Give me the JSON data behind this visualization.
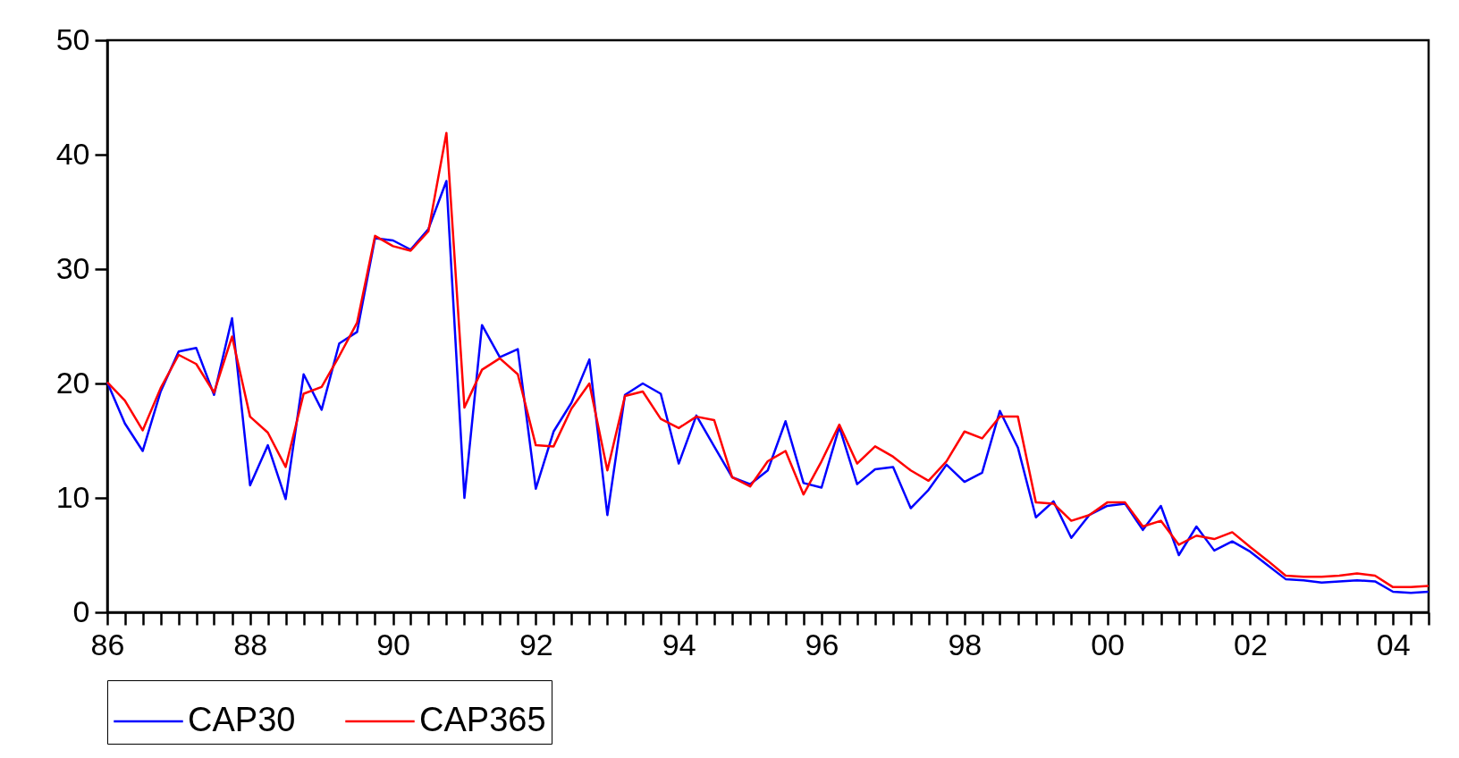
{
  "chart_data": {
    "type": "line",
    "x": [
      "1986-01",
      "1986-04",
      "1986-07",
      "1986-10",
      "1987-01",
      "1987-04",
      "1987-07",
      "1987-10",
      "1988-01",
      "1988-04",
      "1988-07",
      "1988-10",
      "1989-01",
      "1989-04",
      "1989-07",
      "1989-10",
      "1990-01",
      "1990-04",
      "1990-07",
      "1990-10",
      "1991-01",
      "1991-04",
      "1991-07",
      "1991-10",
      "1992-01",
      "1992-04",
      "1992-07",
      "1992-10",
      "1993-01",
      "1993-04",
      "1993-07",
      "1993-10",
      "1994-01",
      "1994-04",
      "1994-07",
      "1994-10",
      "1995-01",
      "1995-04",
      "1995-07",
      "1995-10",
      "1996-01",
      "1996-04",
      "1996-07",
      "1996-10",
      "1997-01",
      "1997-04",
      "1997-07",
      "1997-10",
      "1998-01",
      "1998-04",
      "1998-07",
      "1998-10",
      "1999-01",
      "1999-04",
      "1999-07",
      "1999-10",
      "2000-01",
      "2000-04",
      "2000-07",
      "2000-10",
      "2001-01",
      "2001-04",
      "2001-07",
      "2001-10",
      "2002-01",
      "2002-04",
      "2002-07",
      "2002-10",
      "2003-01",
      "2003-04",
      "2003-07",
      "2003-10",
      "2004-01",
      "2004-04",
      "2004-07"
    ],
    "series": [
      {
        "name": "CAP30",
        "color": "#0000ff",
        "values": [
          20.1,
          16.5,
          14.1,
          19.3,
          22.8,
          23.1,
          19.0,
          25.7,
          11.1,
          14.6,
          9.9,
          20.8,
          17.7,
          23.5,
          24.5,
          32.7,
          32.5,
          31.7,
          33.5,
          37.7,
          10.0,
          25.1,
          22.3,
          23.0,
          10.8,
          15.8,
          18.3,
          22.1,
          8.5,
          19.0,
          20.0,
          19.1,
          13.0,
          17.2,
          14.5,
          11.8,
          11.2,
          12.4,
          16.7,
          11.3,
          10.9,
          16.2,
          11.2,
          12.5,
          12.7,
          9.1,
          10.7,
          12.9,
          11.4,
          12.2,
          17.6,
          14.4,
          8.3,
          9.7,
          6.5,
          8.5,
          9.3,
          9.5,
          7.2,
          9.3,
          5.0,
          7.5,
          5.4,
          6.2,
          5.3,
          4.1,
          2.9,
          2.8,
          2.6,
          2.7,
          2.8,
          2.7,
          1.8,
          1.7,
          1.8
        ]
      },
      {
        "name": "CAP365",
        "color": "#ff0000",
        "values": [
          20.1,
          18.5,
          15.9,
          19.6,
          22.5,
          21.7,
          19.2,
          24.1,
          17.1,
          15.7,
          12.7,
          19.1,
          19.7,
          22.4,
          25.3,
          32.9,
          32.0,
          31.6,
          33.3,
          41.9,
          17.9,
          21.2,
          22.2,
          20.8,
          14.6,
          14.5,
          17.8,
          20.0,
          12.4,
          18.9,
          19.3,
          16.9,
          16.1,
          17.1,
          16.8,
          11.8,
          11.0,
          13.2,
          14.1,
          10.3,
          13.2,
          16.4,
          13.0,
          14.5,
          13.6,
          12.4,
          11.5,
          13.2,
          15.8,
          15.2,
          17.1,
          17.1,
          9.6,
          9.5,
          8.0,
          8.5,
          9.6,
          9.6,
          7.5,
          8.0,
          5.9,
          6.7,
          6.4,
          7.0,
          5.7,
          4.5,
          3.2,
          3.1,
          3.1,
          3.2,
          3.4,
          3.2,
          2.2,
          2.2,
          2.3
        ]
      }
    ],
    "xlim": [
      "1986-01",
      "2004-07"
    ],
    "xticks": [
      {
        "value": "1986-01",
        "label": "86"
      },
      {
        "value": "1986-04",
        "label": null
      },
      {
        "value": "1986-07",
        "label": null
      },
      {
        "value": "1986-10",
        "label": null
      },
      {
        "value": "1987-01",
        "label": null
      },
      {
        "value": "1987-04",
        "label": null
      },
      {
        "value": "1987-07",
        "label": null
      },
      {
        "value": "1987-10",
        "label": null
      },
      {
        "value": "1988-01",
        "label": "88"
      },
      {
        "value": "1988-04",
        "label": null
      },
      {
        "value": "1988-07",
        "label": null
      },
      {
        "value": "1988-10",
        "label": null
      },
      {
        "value": "1989-01",
        "label": null
      },
      {
        "value": "1989-04",
        "label": null
      },
      {
        "value": "1989-07",
        "label": null
      },
      {
        "value": "1989-10",
        "label": null
      },
      {
        "value": "1990-01",
        "label": "90"
      },
      {
        "value": "1990-04",
        "label": null
      },
      {
        "value": "1990-07",
        "label": null
      },
      {
        "value": "1990-10",
        "label": null
      },
      {
        "value": "1991-01",
        "label": null
      },
      {
        "value": "1991-04",
        "label": null
      },
      {
        "value": "1991-07",
        "label": null
      },
      {
        "value": "1991-10",
        "label": null
      },
      {
        "value": "1992-01",
        "label": "92"
      },
      {
        "value": "1992-04",
        "label": null
      },
      {
        "value": "1992-07",
        "label": null
      },
      {
        "value": "1992-10",
        "label": null
      },
      {
        "value": "1993-01",
        "label": null
      },
      {
        "value": "1993-04",
        "label": null
      },
      {
        "value": "1993-07",
        "label": null
      },
      {
        "value": "1993-10",
        "label": null
      },
      {
        "value": "1994-01",
        "label": "94"
      },
      {
        "value": "1994-04",
        "label": null
      },
      {
        "value": "1994-07",
        "label": null
      },
      {
        "value": "1994-10",
        "label": null
      },
      {
        "value": "1995-01",
        "label": null
      },
      {
        "value": "1995-04",
        "label": null
      },
      {
        "value": "1995-07",
        "label": null
      },
      {
        "value": "1995-10",
        "label": null
      },
      {
        "value": "1996-01",
        "label": "96"
      },
      {
        "value": "1996-04",
        "label": null
      },
      {
        "value": "1996-07",
        "label": null
      },
      {
        "value": "1996-10",
        "label": null
      },
      {
        "value": "1997-01",
        "label": null
      },
      {
        "value": "1997-04",
        "label": null
      },
      {
        "value": "1997-07",
        "label": null
      },
      {
        "value": "1997-10",
        "label": null
      },
      {
        "value": "1998-01",
        "label": "98"
      },
      {
        "value": "1998-04",
        "label": null
      },
      {
        "value": "1998-07",
        "label": null
      },
      {
        "value": "1998-10",
        "label": null
      },
      {
        "value": "1999-01",
        "label": null
      },
      {
        "value": "1999-04",
        "label": null
      },
      {
        "value": "1999-07",
        "label": null
      },
      {
        "value": "1999-10",
        "label": null
      },
      {
        "value": "2000-01",
        "label": "00"
      },
      {
        "value": "2000-04",
        "label": null
      },
      {
        "value": "2000-07",
        "label": null
      },
      {
        "value": "2000-10",
        "label": null
      },
      {
        "value": "2001-01",
        "label": null
      },
      {
        "value": "2001-04",
        "label": null
      },
      {
        "value": "2001-07",
        "label": null
      },
      {
        "value": "2001-10",
        "label": null
      },
      {
        "value": "2002-01",
        "label": "02"
      },
      {
        "value": "2002-04",
        "label": null
      },
      {
        "value": "2002-07",
        "label": null
      },
      {
        "value": "2002-10",
        "label": null
      },
      {
        "value": "2003-01",
        "label": null
      },
      {
        "value": "2003-04",
        "label": null
      },
      {
        "value": "2003-07",
        "label": null
      },
      {
        "value": "2003-10",
        "label": null
      },
      {
        "value": "2004-01",
        "label": "04"
      },
      {
        "value": "2004-04",
        "label": null
      },
      {
        "value": "2004-07",
        "label": null
      }
    ],
    "ylim": [
      0,
      50
    ],
    "yticks": [
      0,
      10,
      20,
      30,
      40,
      50
    ],
    "legend": "bottom"
  }
}
